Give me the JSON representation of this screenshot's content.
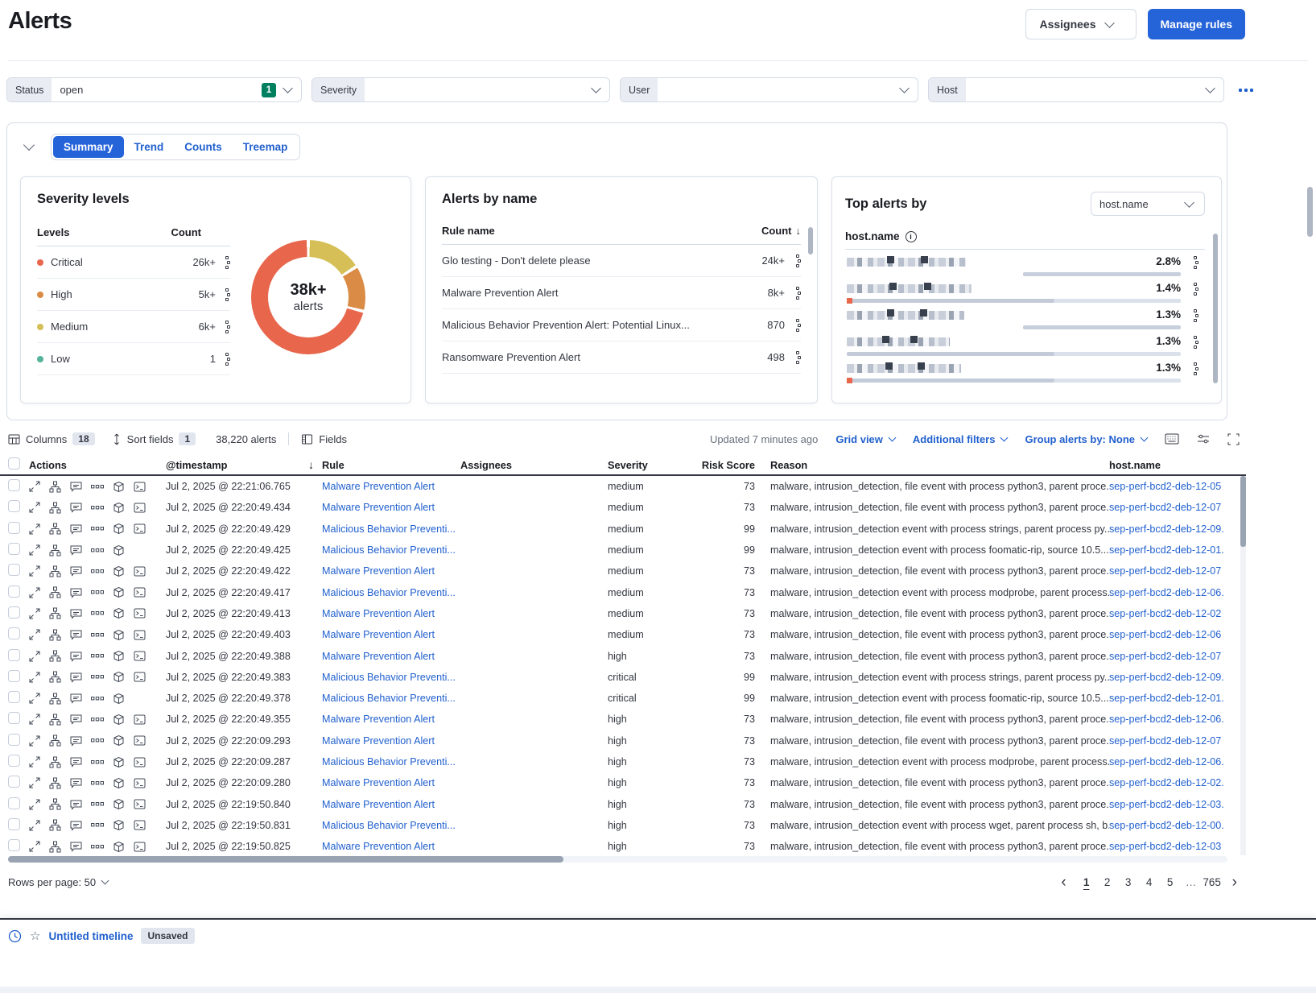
{
  "header": {
    "title": "Alerts",
    "assignees_button": "Assignees",
    "manage_rules_button": "Manage rules"
  },
  "filters": {
    "status": {
      "label": "Status",
      "value": "open",
      "badge": "1"
    },
    "severity": {
      "label": "Severity"
    },
    "user": {
      "label": "User"
    },
    "host": {
      "label": "Host"
    }
  },
  "tabs": {
    "items": [
      {
        "label": "Summary",
        "active": true
      },
      {
        "label": "Trend",
        "active": false
      },
      {
        "label": "Counts",
        "active": false
      },
      {
        "label": "Treemap",
        "active": false
      }
    ]
  },
  "severity_panel": {
    "title": "Severity levels",
    "col_levels": "Levels",
    "col_count": "Count",
    "rows": [
      {
        "label": "Critical",
        "count": "26k+",
        "color": "#e7664c"
      },
      {
        "label": "High",
        "count": "5k+",
        "color": "#da8b45"
      },
      {
        "label": "Medium",
        "count": "6k+",
        "color": "#d6bf57"
      },
      {
        "label": "Low",
        "count": "1",
        "color": "#54b399"
      }
    ],
    "donut": {
      "center_value": "38k+",
      "center_label": "alerts",
      "segments": [
        {
          "name": "Medium",
          "color": "#d6bf57",
          "pct": 16
        },
        {
          "name": "High",
          "color": "#da8b45",
          "pct": 13
        },
        {
          "name": "Critical",
          "color": "#e7664c",
          "pct": 71
        }
      ]
    }
  },
  "alerts_by_name_panel": {
    "title": "Alerts by name",
    "col_rule": "Rule name",
    "col_count": "Count",
    "sort_arrow": "↓",
    "rows": [
      {
        "name": "Glo testing - Don't delete please",
        "count": "24k+"
      },
      {
        "name": "Malware Prevention Alert",
        "count": "8k+"
      },
      {
        "name": "Malicious Behavior Prevention Alert: Potential Linux...",
        "count": "870"
      },
      {
        "name": "Ransomware Prevention Alert",
        "count": "498"
      }
    ]
  },
  "top_alerts_panel": {
    "title": "Top alerts by",
    "selector_value": "host.name",
    "field_label": "host.name",
    "rows": [
      {
        "percent": "2.8%",
        "bar": "short",
        "red": false,
        "censored_width": 148
      },
      {
        "percent": "1.4%",
        "bar": "long",
        "red": true,
        "censored_width": 155
      },
      {
        "percent": "1.3%",
        "bar": "short",
        "red": false,
        "censored_width": 146
      },
      {
        "percent": "1.3%",
        "bar": "long",
        "red": false,
        "censored_width": 128
      },
      {
        "percent": "1.3%",
        "bar": "long",
        "red": true,
        "censored_width": 142
      }
    ]
  },
  "toolbar": {
    "columns_label": "Columns",
    "columns_count": "18",
    "sort_label": "Sort fields",
    "sort_count": "1",
    "alert_count": "38,220 alerts",
    "fields_label": "Fields",
    "updated": "Updated 7 minutes ago",
    "grid_view": "Grid view",
    "additional_filters": "Additional filters",
    "group_by": "Group alerts by: None"
  },
  "grid": {
    "headers": {
      "actions": "Actions",
      "timestamp": "@timestamp",
      "sort_arrow": "↓",
      "rule": "Rule",
      "assignees": "Assignees",
      "severity": "Severity",
      "risk": "Risk Score",
      "reason": "Reason",
      "host": "host.name"
    },
    "rows": [
      {
        "timestamp": "Jul 2, 2025 @ 22:21:06.765",
        "rule": "Malware Prevention Alert",
        "severity": "medium",
        "risk": "73",
        "reason": "malware, intrusion_detection, file event with process python3, parent proce...",
        "host": "sep-perf-bcd2-deb-12-05",
        "terminal": true
      },
      {
        "timestamp": "Jul 2, 2025 @ 22:20:49.434",
        "rule": "Malware Prevention Alert",
        "severity": "medium",
        "risk": "73",
        "reason": "malware, intrusion_detection, file event with process python3, parent proce...",
        "host": "sep-perf-bcd2-deb-12-07",
        "terminal": true
      },
      {
        "timestamp": "Jul 2, 2025 @ 22:20:49.429",
        "rule": "Malicious Behavior Preventi...",
        "severity": "medium",
        "risk": "99",
        "reason": "malware, intrusion_detection event with process strings, parent process py...",
        "host": "sep-perf-bcd2-deb-12-09.",
        "terminal": true
      },
      {
        "timestamp": "Jul 2, 2025 @ 22:20:49.425",
        "rule": "Malicious Behavior Preventi...",
        "severity": "medium",
        "risk": "99",
        "reason": "malware, intrusion_detection event with process foomatic-rip, source 10.5....",
        "host": "sep-perf-bcd2-deb-12-01.",
        "terminal": false
      },
      {
        "timestamp": "Jul 2, 2025 @ 22:20:49.422",
        "rule": "Malware Prevention Alert",
        "severity": "medium",
        "risk": "73",
        "reason": "malware, intrusion_detection, file event with process python3, parent proce...",
        "host": "sep-perf-bcd2-deb-12-07",
        "terminal": true
      },
      {
        "timestamp": "Jul 2, 2025 @ 22:20:49.417",
        "rule": "Malicious Behavior Preventi...",
        "severity": "medium",
        "risk": "73",
        "reason": "malware, intrusion_detection event with process modprobe, parent process...",
        "host": "sep-perf-bcd2-deb-12-06.",
        "terminal": true
      },
      {
        "timestamp": "Jul 2, 2025 @ 22:20:49.413",
        "rule": "Malware Prevention Alert",
        "severity": "medium",
        "risk": "73",
        "reason": "malware, intrusion_detection, file event with process python3, parent proce...",
        "host": "sep-perf-bcd2-deb-12-02",
        "terminal": true
      },
      {
        "timestamp": "Jul 2, 2025 @ 22:20:49.403",
        "rule": "Malware Prevention Alert",
        "severity": "medium",
        "risk": "73",
        "reason": "malware, intrusion_detection, file event with process python3, parent proce...",
        "host": "sep-perf-bcd2-deb-12-06",
        "terminal": true
      },
      {
        "timestamp": "Jul 2, 2025 @ 22:20:49.388",
        "rule": "Malware Prevention Alert",
        "severity": "high",
        "risk": "73",
        "reason": "malware, intrusion_detection, file event with process python3, parent proce...",
        "host": "sep-perf-bcd2-deb-12-07",
        "terminal": true
      },
      {
        "timestamp": "Jul 2, 2025 @ 22:20:49.383",
        "rule": "Malicious Behavior Preventi...",
        "severity": "critical",
        "risk": "99",
        "reason": "malware, intrusion_detection event with process strings, parent process py...",
        "host": "sep-perf-bcd2-deb-12-09.",
        "terminal": true
      },
      {
        "timestamp": "Jul 2, 2025 @ 22:20:49.378",
        "rule": "Malicious Behavior Preventi...",
        "severity": "critical",
        "risk": "99",
        "reason": "malware, intrusion_detection event with process foomatic-rip, source 10.5....",
        "host": "sep-perf-bcd2-deb-12-01.",
        "terminal": false
      },
      {
        "timestamp": "Jul 2, 2025 @ 22:20:49.355",
        "rule": "Malware Prevention Alert",
        "severity": "high",
        "risk": "73",
        "reason": "malware, intrusion_detection, file event with process python3, parent proce...",
        "host": "sep-perf-bcd2-deb-12-06.",
        "terminal": true
      },
      {
        "timestamp": "Jul 2, 2025 @ 22:20:09.293",
        "rule": "Malware Prevention Alert",
        "severity": "high",
        "risk": "73",
        "reason": "malware, intrusion_detection, file event with process python3, parent proce...",
        "host": "sep-perf-bcd2-deb-12-07",
        "terminal": true
      },
      {
        "timestamp": "Jul 2, 2025 @ 22:20:09.287",
        "rule": "Malicious Behavior Preventi...",
        "severity": "high",
        "risk": "73",
        "reason": "malware, intrusion_detection event with process modprobe, parent process...",
        "host": "sep-perf-bcd2-deb-12-06.",
        "terminal": true
      },
      {
        "timestamp": "Jul 2, 2025 @ 22:20:09.280",
        "rule": "Malware Prevention Alert",
        "severity": "high",
        "risk": "73",
        "reason": "malware, intrusion_detection, file event with process python3, parent proce...",
        "host": "sep-perf-bcd2-deb-12-02.",
        "terminal": true
      },
      {
        "timestamp": "Jul 2, 2025 @ 22:19:50.840",
        "rule": "Malware Prevention Alert",
        "severity": "high",
        "risk": "73",
        "reason": "malware, intrusion_detection, file event with process python3, parent proce...",
        "host": "sep-perf-bcd2-deb-12-03.",
        "terminal": true
      },
      {
        "timestamp": "Jul 2, 2025 @ 22:19:50.831",
        "rule": "Malicious Behavior Preventi...",
        "severity": "high",
        "risk": "73",
        "reason": "malware, intrusion_detection event with process wget, parent process sh, b...",
        "host": "sep-perf-bcd2-deb-12-00.",
        "terminal": true
      },
      {
        "timestamp": "Jul 2, 2025 @ 22:19:50.825",
        "rule": "Malware Prevention Alert",
        "severity": "high",
        "risk": "73",
        "reason": "malware, intrusion_detection, file event with process python3, parent proce...",
        "host": "sep-perf-bcd2-deb-12-03",
        "terminal": true
      }
    ]
  },
  "footer": {
    "rows_per_page": "Rows per page: 50",
    "pages": [
      {
        "label": "1",
        "active": true
      },
      {
        "label": "2",
        "active": false
      },
      {
        "label": "3",
        "active": false
      },
      {
        "label": "4",
        "active": false
      },
      {
        "label": "5",
        "active": false
      },
      {
        "label": "…",
        "active": false,
        "ellipsis": true
      },
      {
        "label": "765",
        "active": false
      }
    ]
  },
  "timeline_bar": {
    "title": "Untitled timeline",
    "badge": "Unsaved"
  }
}
